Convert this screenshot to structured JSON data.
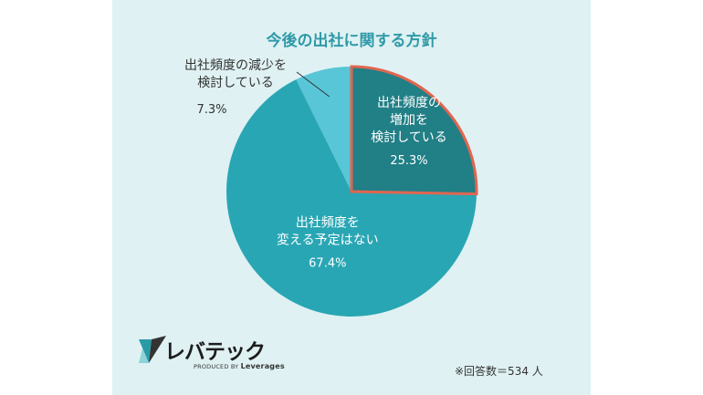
{
  "chart_data": {
    "type": "pie",
    "title": "今後の出社に関する方針",
    "slices": [
      {
        "label": [
          "出社頻度の",
          "増加を",
          "検討している"
        ],
        "value": 25.3,
        "value_label": "25.3%",
        "color": "#217f86",
        "highlight": true,
        "label_placement": "inside"
      },
      {
        "label": [
          "出社頻度を",
          "変える予定はない"
        ],
        "value": 67.4,
        "value_label": "67.4%",
        "color": "#29a6b4",
        "highlight": false,
        "label_placement": "inside"
      },
      {
        "label": [
          "出社頻度の減少を",
          "検討している"
        ],
        "value": 7.3,
        "value_label": "7.3%",
        "color": "#58c6d6",
        "highlight": false,
        "label_placement": "outside"
      }
    ],
    "highlight_color": "#e06650",
    "start_angle": "12 o'clock",
    "direction": "clockwise"
  },
  "note": "※回答数＝534 人",
  "logo": {
    "name": "レバテック",
    "tagline_prefix": "PRODUCED BY",
    "tagline_brand": "Leverages"
  }
}
